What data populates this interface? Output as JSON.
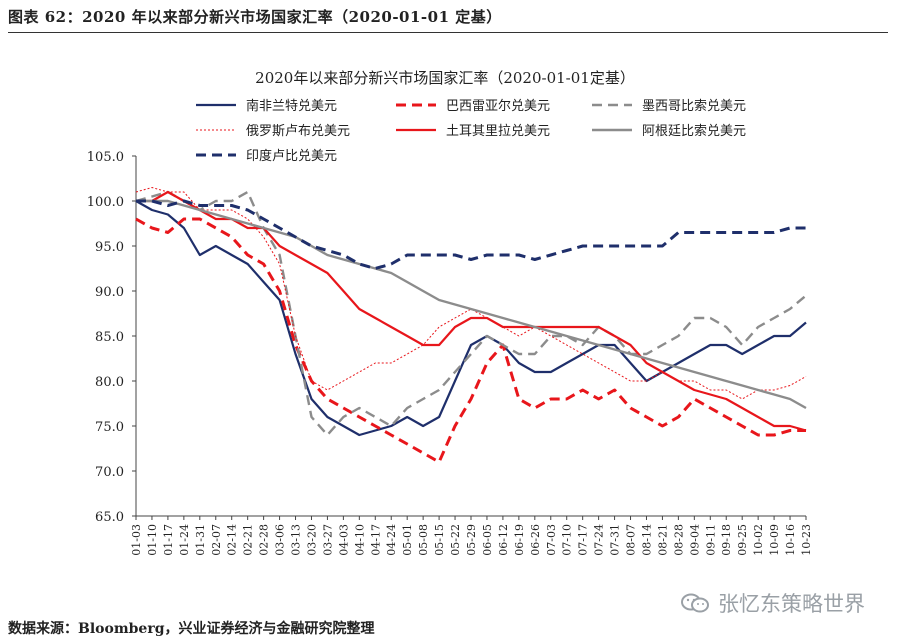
{
  "figure_caption": "图表 62：2020 年以来部分新兴市场国家汇率（2020-01-01 定基）",
  "source_note": "数据来源：Bloomberg，兴业证券经济与金融研究院整理",
  "watermark": "张忆东策略世界",
  "chart_data": {
    "type": "line",
    "title": "2020年以来部分新兴市场国家汇率（2020-01-01定基）",
    "xlabel": "",
    "ylabel": "",
    "ylim": [
      65,
      105
    ],
    "yticks": [
      "65.0",
      "70.0",
      "75.0",
      "80.0",
      "85.0",
      "90.0",
      "95.0",
      "100.0",
      "105.0"
    ],
    "grid": false,
    "legend_position": "top",
    "categories": [
      "01-03",
      "01-10",
      "01-17",
      "01-24",
      "01-31",
      "02-07",
      "02-14",
      "02-21",
      "02-28",
      "03-06",
      "03-13",
      "03-20",
      "03-27",
      "04-03",
      "04-10",
      "04-17",
      "04-24",
      "05-01",
      "05-08",
      "05-15",
      "05-22",
      "05-29",
      "06-05",
      "06-12",
      "06-19",
      "06-26",
      "07-03",
      "07-10",
      "07-17",
      "07-24",
      "07-31",
      "08-07",
      "08-14",
      "08-21",
      "08-28",
      "09-04",
      "09-11",
      "09-18",
      "09-25",
      "10-02",
      "10-09",
      "10-16",
      "10-23"
    ],
    "series": [
      {
        "name": "南非兰特兑美元",
        "color": "#1f2f6b",
        "style": "solid",
        "width": 2.2,
        "values": [
          100,
          99,
          98.5,
          97,
          94,
          95,
          94,
          93,
          91,
          89,
          83,
          78,
          76,
          75,
          74,
          74.5,
          75,
          76,
          75,
          76,
          80,
          84,
          85,
          84,
          82,
          81,
          81,
          82,
          83,
          84,
          84,
          82,
          80,
          81,
          82,
          83,
          84,
          84,
          83,
          84,
          85,
          85,
          86.5
        ]
      },
      {
        "name": "巴西雷亚尔兑美元",
        "color": "#e8161b",
        "style": "dash",
        "width": 3,
        "values": [
          98,
          97,
          96.5,
          98,
          98,
          97,
          96,
          94,
          93,
          90,
          84,
          80,
          78,
          77,
          76,
          75,
          74,
          73,
          72,
          71,
          75,
          78,
          82,
          84,
          78,
          77,
          78,
          78,
          79,
          78,
          79,
          77,
          76,
          75,
          76,
          78,
          77,
          76,
          75,
          74,
          74,
          74.5,
          74.5
        ]
      },
      {
        "name": "墨西哥比索兑美元",
        "color": "#8c8c8c",
        "style": "dash",
        "width": 2.4,
        "values": [
          100,
          100.5,
          101,
          100,
          99,
          100,
          100,
          101,
          97,
          94,
          85,
          76,
          74,
          76,
          77,
          76,
          75,
          77,
          78,
          79,
          81,
          83,
          85,
          84,
          83,
          83,
          85,
          85,
          84,
          86,
          85,
          83,
          83,
          84,
          85,
          87,
          87,
          86,
          84,
          86,
          87,
          88,
          89.5
        ]
      },
      {
        "name": "俄罗斯卢布兑美元",
        "color": "#e8161b",
        "style": "dot",
        "width": 1,
        "values": [
          101,
          101.5,
          101,
          101,
          99,
          99,
          99,
          98,
          96,
          93,
          85,
          80,
          79,
          80,
          81,
          82,
          82,
          83,
          84,
          86,
          87,
          88,
          87,
          86,
          85,
          86,
          85,
          84,
          83,
          82,
          81,
          80,
          80,
          81,
          80,
          80,
          79,
          79,
          78,
          79,
          79,
          79.5,
          80.5
        ]
      },
      {
        "name": "土耳其里拉兑美元",
        "color": "#e8161b",
        "style": "solid",
        "width": 2.2,
        "values": [
          100,
          100,
          101,
          100,
          99,
          98,
          98,
          97,
          97,
          95,
          94,
          93,
          92,
          90,
          88,
          87,
          86,
          85,
          84,
          84,
          86,
          87,
          87,
          86,
          86,
          86,
          86,
          86,
          86,
          86,
          85,
          84,
          82,
          81,
          80,
          79,
          78.5,
          78,
          77,
          76,
          75,
          75,
          74.5
        ]
      },
      {
        "name": "阿根廷比索兑美元",
        "color": "#8c8c8c",
        "style": "solid",
        "width": 2.4,
        "values": [
          100,
          100,
          100,
          99.5,
          99,
          98.5,
          98,
          97.5,
          97,
          96.5,
          96,
          95,
          94,
          93.5,
          93,
          92.5,
          92,
          91,
          90,
          89,
          88.5,
          88,
          87.5,
          87,
          86.5,
          86,
          85.5,
          85,
          84.5,
          84,
          83.5,
          83,
          82.5,
          82,
          81.5,
          81,
          80.5,
          80,
          79.5,
          79,
          78.5,
          78,
          77
        ]
      },
      {
        "name": "印度卢比兑美元",
        "color": "#1f2f6b",
        "style": "dash",
        "width": 3,
        "values": [
          100,
          100,
          99.5,
          100,
          99.5,
          99.5,
          99.5,
          99,
          98,
          97,
          96,
          95,
          94.5,
          94,
          93,
          92.5,
          93,
          94,
          94,
          94,
          94,
          93.5,
          94,
          94,
          94,
          93.5,
          94,
          94.5,
          95,
          95,
          95,
          95,
          95,
          95,
          96.5,
          96.5,
          96.5,
          96.5,
          96.5,
          96.5,
          96.5,
          97,
          97
        ]
      }
    ]
  }
}
